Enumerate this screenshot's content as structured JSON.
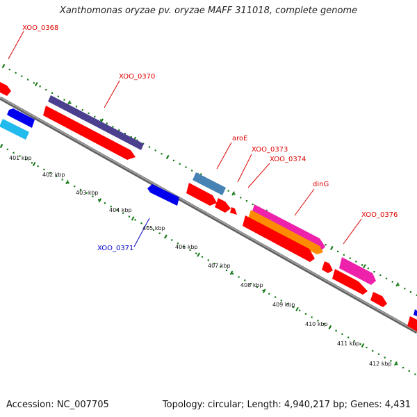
{
  "title": "Xanthomonas oryzae pv. oryzae MAFF 311018, complete genome",
  "footer": {
    "accession": "Accession: NC_007705",
    "info": "Topology: circular; Length: 4,940,217 bp; Genes: 4,431"
  },
  "colors": {
    "forward_label": "#dd0000",
    "reverse_label": "#0000cc",
    "tick": "#117711",
    "backbone": "#808080",
    "cds": "#ff0000",
    "dark_violet": "#4b3f8f",
    "blue": "#0000ee",
    "cyan": "#22bbee",
    "steel_blue": "#4682b4",
    "magenta": "#ee22aa",
    "orange": "#ff8c00"
  },
  "scale_labels": [
    "401 kbp",
    "402 kbp",
    "403 kbp",
    "404 kbp",
    "405 kbp",
    "406 kbp",
    "407 kbp",
    "408 kbp",
    "409 kbp",
    "410 kbp",
    "411 kbp",
    "412 kbp"
  ],
  "gene_labels": [
    {
      "text": "XOO_0368",
      "strand": "forward"
    },
    {
      "text": "XOO_0370",
      "strand": "forward"
    },
    {
      "text": "aroE",
      "strand": "forward"
    },
    {
      "text": "XOO_0373",
      "strand": "forward"
    },
    {
      "text": "XOO_0374",
      "strand": "forward"
    },
    {
      "text": "dinG",
      "strand": "forward"
    },
    {
      "text": "XOO_0376",
      "strand": "forward"
    },
    {
      "text": "XOO_0371",
      "strand": "reverse"
    }
  ]
}
